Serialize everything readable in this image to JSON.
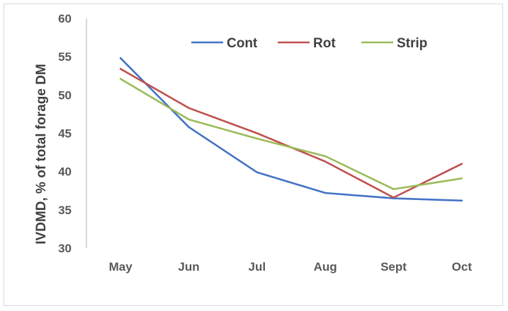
{
  "chart_data": {
    "type": "line",
    "title": "",
    "xlabel": "",
    "ylabel": "IVDMD, % of total forage DM",
    "categories": [
      "May",
      "Jun",
      "Jul",
      "Aug",
      "Sept",
      "Oct"
    ],
    "ylim": [
      30,
      60
    ],
    "yticks": [
      30,
      35,
      40,
      45,
      50,
      55,
      60
    ],
    "grid": false,
    "legend_position": "top",
    "series": [
      {
        "name": "Cont",
        "color": "#4472c4",
        "values": [
          54.8,
          45.8,
          39.9,
          37.2,
          36.5,
          36.2
        ]
      },
      {
        "name": "Rot",
        "color": "#c0504d",
        "values": [
          53.4,
          48.3,
          45.0,
          41.3,
          36.6,
          41.0
        ]
      },
      {
        "name": "Strip",
        "color": "#9bbb59",
        "values": [
          52.1,
          46.8,
          44.3,
          42.0,
          37.7,
          39.1
        ]
      }
    ]
  }
}
